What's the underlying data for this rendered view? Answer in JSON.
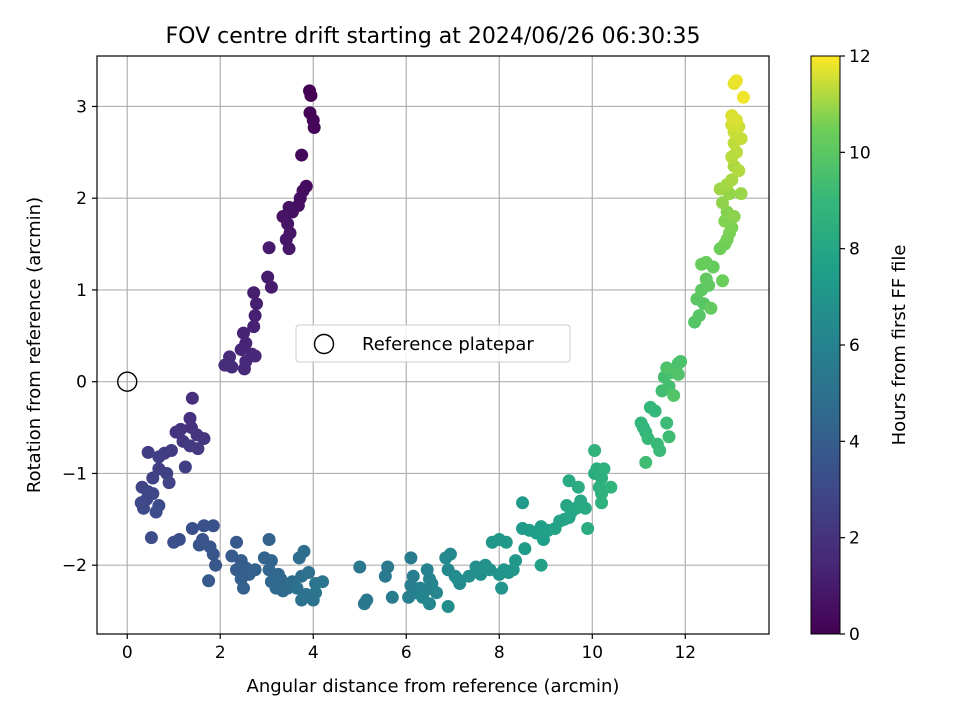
{
  "chart_data": {
    "type": "scatter",
    "title": "FOV centre drift starting at 2024/06/26 06:30:35",
    "xlabel": "Angular distance from reference (arcmin)",
    "ylabel": "Rotation from reference (arcmin)",
    "xlim": [
      -0.65,
      13.8
    ],
    "ylim": [
      -2.75,
      3.55
    ],
    "xticks": [
      0,
      2,
      4,
      6,
      8,
      10,
      12
    ],
    "yticks": [
      -2,
      -1,
      0,
      1,
      2,
      3
    ],
    "grid": true,
    "legend": {
      "placement": "center",
      "entries": [
        "Reference platepar"
      ]
    },
    "reference_point": {
      "name": "Reference platepar",
      "x": 0,
      "y": 0,
      "marker": "open-circle"
    },
    "colorbar": {
      "label": "Hours from first FF file",
      "min": 0,
      "max": 12,
      "ticks": [
        0,
        2,
        4,
        6,
        8,
        10,
        12
      ],
      "colormap": "viridis"
    },
    "series": [
      {
        "color_by": "hours",
        "points": [
          [
            3.92,
            3.17,
            0.0
          ],
          [
            3.95,
            3.12,
            0.05
          ],
          [
            3.93,
            2.93,
            0.1
          ],
          [
            4.0,
            2.85,
            0.15
          ],
          [
            4.02,
            2.77,
            0.2
          ],
          [
            3.75,
            2.47,
            0.3
          ],
          [
            3.85,
            2.13,
            0.4
          ],
          [
            3.78,
            2.08,
            0.45
          ],
          [
            3.72,
            2.0,
            0.5
          ],
          [
            3.68,
            1.92,
            0.55
          ],
          [
            3.55,
            1.85,
            0.6
          ],
          [
            3.48,
            1.9,
            0.65
          ],
          [
            3.35,
            1.8,
            0.7
          ],
          [
            3.45,
            1.72,
            0.75
          ],
          [
            3.5,
            1.62,
            0.8
          ],
          [
            3.42,
            1.55,
            0.85
          ],
          [
            3.48,
            1.45,
            0.9
          ],
          [
            3.05,
            1.46,
            0.95
          ],
          [
            3.02,
            1.14,
            1.0
          ],
          [
            3.1,
            1.03,
            1.05
          ],
          [
            2.72,
            0.97,
            1.1
          ],
          [
            2.78,
            0.85,
            1.15
          ],
          [
            2.75,
            0.72,
            1.2
          ],
          [
            2.72,
            0.6,
            1.25
          ],
          [
            2.5,
            0.53,
            1.3
          ],
          [
            2.55,
            0.42,
            1.35
          ],
          [
            2.45,
            0.35,
            1.4
          ],
          [
            2.68,
            0.3,
            1.45
          ],
          [
            2.75,
            0.28,
            1.5
          ],
          [
            2.55,
            0.22,
            1.55
          ],
          [
            2.52,
            0.14,
            1.6
          ],
          [
            2.2,
            0.27,
            1.65
          ],
          [
            2.1,
            0.18,
            1.7
          ],
          [
            2.25,
            0.16,
            1.75
          ],
          [
            1.4,
            -0.18,
            1.85
          ],
          [
            1.35,
            -0.4,
            1.9
          ],
          [
            1.38,
            -0.5,
            1.95
          ],
          [
            1.15,
            -0.52,
            2.0
          ],
          [
            1.05,
            -0.55,
            2.05
          ],
          [
            1.5,
            -0.58,
            2.1
          ],
          [
            1.65,
            -0.62,
            2.15
          ],
          [
            1.2,
            -0.65,
            2.2
          ],
          [
            1.35,
            -0.7,
            2.25
          ],
          [
            1.52,
            -0.73,
            2.3
          ],
          [
            0.95,
            -0.75,
            2.35
          ],
          [
            0.8,
            -0.78,
            2.4
          ],
          [
            0.45,
            -0.77,
            2.45
          ],
          [
            0.68,
            -0.82,
            2.5
          ],
          [
            1.25,
            -0.93,
            2.55
          ],
          [
            0.68,
            -0.95,
            2.6
          ],
          [
            0.85,
            -1.0,
            2.65
          ],
          [
            0.55,
            -1.05,
            2.7
          ],
          [
            0.9,
            -1.1,
            2.75
          ],
          [
            0.32,
            -1.15,
            2.8
          ],
          [
            0.45,
            -1.2,
            2.85
          ],
          [
            0.55,
            -1.22,
            2.9
          ],
          [
            0.42,
            -1.28,
            2.95
          ],
          [
            0.3,
            -1.32,
            3.0
          ],
          [
            0.35,
            -1.38,
            3.05
          ],
          [
            0.68,
            -1.35,
            3.1
          ],
          [
            0.62,
            -1.42,
            3.15
          ],
          [
            0.52,
            -1.7,
            3.2
          ],
          [
            1.12,
            -1.72,
            3.25
          ],
          [
            1.0,
            -1.75,
            3.3
          ],
          [
            1.4,
            -1.6,
            3.35
          ],
          [
            1.65,
            -1.57,
            3.4
          ],
          [
            1.85,
            -1.57,
            3.45
          ],
          [
            1.62,
            -1.72,
            3.5
          ],
          [
            1.55,
            -1.78,
            3.55
          ],
          [
            1.78,
            -1.8,
            3.6
          ],
          [
            1.85,
            -1.88,
            3.65
          ],
          [
            1.9,
            -2.0,
            3.7
          ],
          [
            1.75,
            -2.17,
            3.75
          ],
          [
            2.35,
            -1.75,
            3.8
          ],
          [
            2.25,
            -1.9,
            3.85
          ],
          [
            2.45,
            -1.95,
            3.9
          ],
          [
            2.35,
            -2.05,
            3.95
          ],
          [
            2.55,
            -2.03,
            4.0
          ],
          [
            2.62,
            -2.1,
            4.05
          ],
          [
            2.45,
            -2.15,
            4.1
          ],
          [
            2.5,
            -2.25,
            4.15
          ],
          [
            2.75,
            -2.05,
            4.2
          ],
          [
            3.05,
            -1.72,
            4.25
          ],
          [
            2.95,
            -1.92,
            4.3
          ],
          [
            3.1,
            -1.95,
            4.35
          ],
          [
            3.05,
            -2.05,
            4.4
          ],
          [
            3.25,
            -2.1,
            4.45
          ],
          [
            3.3,
            -2.15,
            4.5
          ],
          [
            3.1,
            -2.18,
            4.55
          ],
          [
            3.2,
            -2.25,
            4.6
          ],
          [
            3.35,
            -2.28,
            4.65
          ],
          [
            3.45,
            -2.25,
            4.7
          ],
          [
            3.55,
            -2.18,
            4.75
          ],
          [
            3.7,
            -1.92,
            4.8
          ],
          [
            3.8,
            -1.85,
            4.85
          ],
          [
            3.75,
            -2.12,
            4.9
          ],
          [
            3.9,
            -2.08,
            4.95
          ],
          [
            3.65,
            -2.25,
            5.0
          ],
          [
            3.75,
            -2.38,
            5.05
          ],
          [
            3.85,
            -2.32,
            5.1
          ],
          [
            4.0,
            -2.38,
            5.15
          ],
          [
            4.05,
            -2.2,
            5.2
          ],
          [
            4.2,
            -2.18,
            5.25
          ],
          [
            4.05,
            -2.3,
            5.3
          ],
          [
            5.0,
            -2.02,
            5.35
          ],
          [
            5.1,
            -2.42,
            5.4
          ],
          [
            5.15,
            -2.38,
            5.45
          ],
          [
            5.6,
            -2.02,
            5.5
          ],
          [
            5.55,
            -2.12,
            5.55
          ],
          [
            5.7,
            -2.35,
            5.6
          ],
          [
            6.1,
            -1.92,
            5.65
          ],
          [
            6.15,
            -2.12,
            5.7
          ],
          [
            6.1,
            -2.22,
            5.75
          ],
          [
            6.2,
            -2.3,
            5.8
          ],
          [
            6.05,
            -2.35,
            5.85
          ],
          [
            6.3,
            -2.25,
            5.9
          ],
          [
            6.4,
            -2.28,
            5.95
          ],
          [
            6.45,
            -2.05,
            6.0
          ],
          [
            6.5,
            -2.15,
            6.05
          ],
          [
            6.55,
            -2.2,
            6.1
          ],
          [
            6.35,
            -2.35,
            6.15
          ],
          [
            6.5,
            -2.42,
            6.2
          ],
          [
            6.65,
            -2.3,
            6.25
          ],
          [
            6.85,
            -1.92,
            6.3
          ],
          [
            6.95,
            -1.88,
            6.35
          ],
          [
            6.9,
            -2.05,
            6.4
          ],
          [
            7.05,
            -2.12,
            6.45
          ],
          [
            7.15,
            -2.2,
            6.5
          ],
          [
            7.1,
            -2.15,
            6.55
          ],
          [
            6.9,
            -2.45,
            6.6
          ],
          [
            7.35,
            -2.12,
            6.65
          ],
          [
            7.5,
            -2.02,
            6.7
          ],
          [
            7.6,
            -2.1,
            6.75
          ],
          [
            7.7,
            -2.0,
            6.8
          ],
          [
            7.8,
            -2.05,
            6.85
          ],
          [
            8.0,
            -2.1,
            6.9
          ],
          [
            8.05,
            -2.25,
            6.95
          ],
          [
            8.1,
            -2.05,
            6.98
          ],
          [
            8.2,
            -2.08,
            7.0
          ],
          [
            8.3,
            -2.05,
            7.05
          ],
          [
            7.85,
            -1.75,
            7.1
          ],
          [
            8.0,
            -1.72,
            7.15
          ],
          [
            8.15,
            -1.75,
            7.2
          ],
          [
            8.35,
            -1.95,
            7.25
          ],
          [
            8.5,
            -1.32,
            7.3
          ],
          [
            8.5,
            -1.6,
            7.35
          ],
          [
            8.55,
            -1.82,
            7.4
          ],
          [
            8.65,
            -1.62,
            7.45
          ],
          [
            8.8,
            -1.65,
            7.5
          ],
          [
            8.9,
            -1.58,
            7.55
          ],
          [
            8.95,
            -1.72,
            7.6
          ],
          [
            9.05,
            -1.62,
            7.65
          ],
          [
            8.9,
            -2.0,
            7.7
          ],
          [
            9.2,
            -1.6,
            7.75
          ],
          [
            9.3,
            -1.52,
            7.8
          ],
          [
            9.4,
            -1.5,
            7.85
          ],
          [
            9.5,
            -1.48,
            7.9
          ],
          [
            9.45,
            -1.35,
            7.95
          ],
          [
            9.55,
            -1.42,
            8.0
          ],
          [
            9.65,
            -1.38,
            8.05
          ],
          [
            9.75,
            -1.3,
            8.1
          ],
          [
            9.85,
            -1.38,
            8.15
          ],
          [
            9.5,
            -1.08,
            8.2
          ],
          [
            9.7,
            -1.15,
            8.25
          ],
          [
            9.9,
            -1.6,
            8.3
          ],
          [
            10.05,
            -1.0,
            8.35
          ],
          [
            10.1,
            -0.95,
            8.4
          ],
          [
            10.2,
            -1.05,
            8.45
          ],
          [
            10.25,
            -0.95,
            8.5
          ],
          [
            10.15,
            -1.15,
            8.55
          ],
          [
            10.2,
            -1.22,
            8.6
          ],
          [
            10.2,
            -1.32,
            8.65
          ],
          [
            10.05,
            -0.75,
            8.7
          ],
          [
            10.4,
            -1.15,
            8.75
          ],
          [
            11.05,
            -0.45,
            8.8
          ],
          [
            11.1,
            -0.5,
            8.85
          ],
          [
            11.15,
            -0.55,
            8.9
          ],
          [
            11.25,
            -0.28,
            8.95
          ],
          [
            11.35,
            -0.32,
            9.0
          ],
          [
            11.2,
            -0.62,
            9.05
          ],
          [
            11.4,
            -0.68,
            9.1
          ],
          [
            11.45,
            -0.75,
            9.15
          ],
          [
            11.6,
            -0.45,
            9.2
          ],
          [
            11.65,
            -0.6,
            9.25
          ],
          [
            11.15,
            -0.88,
            9.3
          ],
          [
            11.5,
            -0.1,
            9.35
          ],
          [
            11.55,
            0.05,
            9.4
          ],
          [
            11.65,
            -0.05,
            9.45
          ],
          [
            11.7,
            0.1,
            9.5
          ],
          [
            11.8,
            0.15,
            9.55
          ],
          [
            11.85,
            0.2,
            9.6
          ],
          [
            11.9,
            0.22,
            9.65
          ],
          [
            11.6,
            0.15,
            9.7
          ],
          [
            11.85,
            0.08,
            9.75
          ],
          [
            11.75,
            -0.15,
            9.8
          ],
          [
            12.2,
            0.65,
            9.85
          ],
          [
            12.3,
            0.72,
            9.9
          ],
          [
            12.4,
            0.85,
            9.95
          ],
          [
            12.25,
            0.9,
            10.0
          ],
          [
            12.35,
            1.0,
            10.05
          ],
          [
            12.5,
            1.05,
            10.1
          ],
          [
            12.45,
            1.12,
            10.15
          ],
          [
            12.55,
            0.8,
            10.2
          ],
          [
            12.6,
            1.25,
            10.25
          ],
          [
            12.35,
            1.28,
            10.3
          ],
          [
            12.45,
            1.3,
            10.35
          ],
          [
            12.8,
            1.1,
            10.4
          ],
          [
            12.75,
            1.45,
            10.45
          ],
          [
            12.85,
            1.5,
            10.5
          ],
          [
            12.9,
            1.55,
            10.55
          ],
          [
            12.95,
            1.62,
            10.6
          ],
          [
            13.0,
            1.68,
            10.65
          ],
          [
            12.85,
            1.75,
            10.7
          ],
          [
            12.9,
            1.85,
            10.75
          ],
          [
            13.05,
            1.8,
            10.8
          ],
          [
            12.8,
            1.95,
            10.85
          ],
          [
            12.95,
            2.05,
            10.9
          ],
          [
            13.2,
            2.05,
            10.95
          ],
          [
            12.75,
            2.1,
            11.0
          ],
          [
            12.9,
            2.15,
            11.05
          ],
          [
            13.0,
            2.2,
            11.1
          ],
          [
            13.05,
            2.35,
            11.15
          ],
          [
            13.15,
            2.3,
            11.2
          ],
          [
            13.0,
            2.45,
            11.25
          ],
          [
            13.1,
            2.5,
            11.3
          ],
          [
            13.05,
            2.6,
            11.35
          ],
          [
            13.2,
            2.65,
            11.4
          ],
          [
            13.05,
            2.72,
            11.45
          ],
          [
            13.15,
            2.78,
            11.5
          ],
          [
            13.0,
            2.8,
            11.55
          ],
          [
            13.1,
            2.85,
            11.6
          ],
          [
            13.0,
            2.9,
            11.65
          ],
          [
            13.05,
            3.25,
            11.75
          ],
          [
            13.1,
            3.28,
            11.8
          ],
          [
            13.25,
            3.1,
            11.85
          ]
        ]
      }
    ]
  }
}
